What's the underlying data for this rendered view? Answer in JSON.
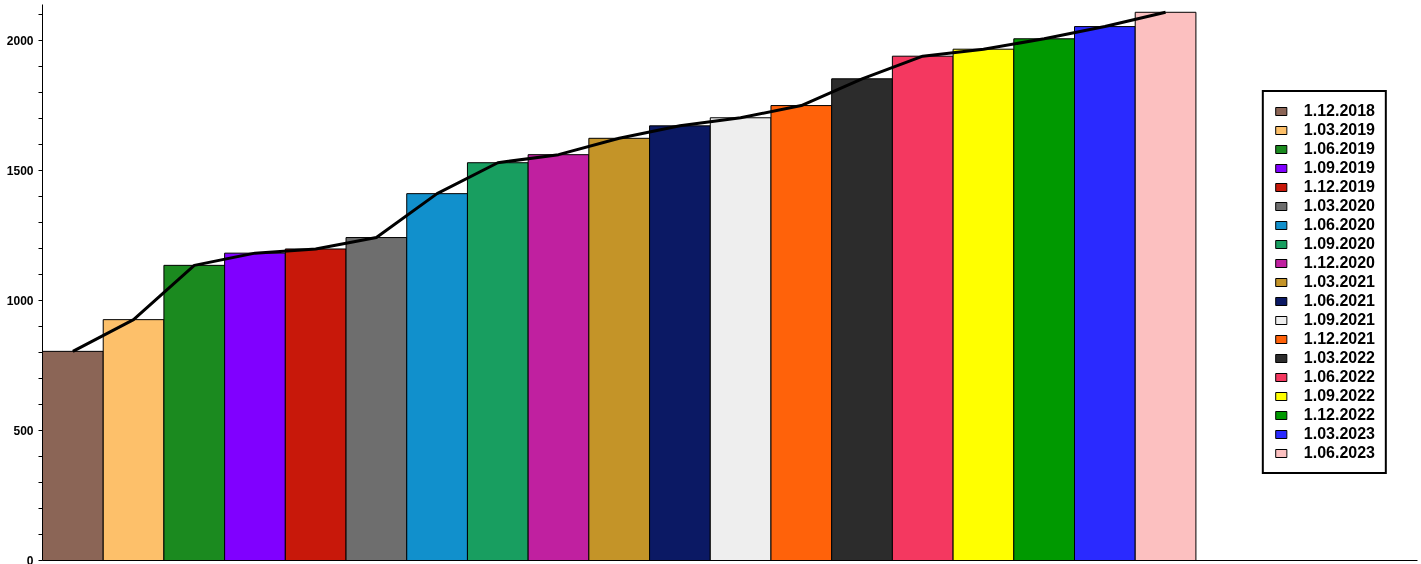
{
  "chart_data": {
    "type": "bar",
    "categories": [
      null,
      null,
      null,
      null,
      null,
      null,
      null,
      null,
      null,
      null,
      null,
      null,
      null,
      null,
      null,
      null,
      null,
      null,
      null
    ],
    "series": [
      {
        "name": "1.12.2018",
        "color": "#8b6556",
        "values": [
          805,
          null,
          null,
          null,
          null,
          null,
          null,
          null,
          null,
          null,
          null,
          null,
          null,
          null,
          null,
          null,
          null,
          null,
          null
        ]
      },
      {
        "name": "1.03.2019",
        "color": "#fdc06a",
        "values": [
          null,
          927,
          null,
          null,
          null,
          null,
          null,
          null,
          null,
          null,
          null,
          null,
          null,
          null,
          null,
          null,
          null,
          null,
          null
        ]
      },
      {
        "name": "1.06.2019",
        "color": "#1b8a1f",
        "values": [
          null,
          null,
          1136,
          null,
          null,
          null,
          null,
          null,
          null,
          null,
          null,
          null,
          null,
          null,
          null,
          null,
          null,
          null,
          null
        ]
      },
      {
        "name": "1.09.2019",
        "color": "#8000ff",
        "values": [
          null,
          null,
          null,
          1183,
          null,
          null,
          null,
          null,
          null,
          null,
          null,
          null,
          null,
          null,
          null,
          null,
          null,
          null,
          null
        ]
      },
      {
        "name": "1.12.2019",
        "color": "#c8180a",
        "values": [
          null,
          null,
          null,
          null,
          1199,
          null,
          null,
          null,
          null,
          null,
          null,
          null,
          null,
          null,
          null,
          null,
          null,
          null,
          null
        ]
      },
      {
        "name": "1.03.2020",
        "color": "#6e6e6e",
        "values": [
          null,
          null,
          null,
          null,
          null,
          1243,
          null,
          null,
          null,
          null,
          null,
          null,
          null,
          null,
          null,
          null,
          null,
          null,
          null
        ]
      },
      {
        "name": "1.06.2020",
        "color": "#1190cc",
        "values": [
          null,
          null,
          null,
          null,
          null,
          null,
          1412,
          null,
          null,
          null,
          null,
          null,
          null,
          null,
          null,
          null,
          null,
          null,
          null
        ]
      },
      {
        "name": "1.09.2020",
        "color": "#189e60",
        "values": [
          null,
          null,
          null,
          null,
          null,
          null,
          null,
          1531,
          null,
          null,
          null,
          null,
          null,
          null,
          null,
          null,
          null,
          null,
          null
        ]
      },
      {
        "name": "1.12.2020",
        "color": "#c020a0",
        "values": [
          null,
          null,
          null,
          null,
          null,
          null,
          null,
          null,
          1562,
          null,
          null,
          null,
          null,
          null,
          null,
          null,
          null,
          null,
          null
        ]
      },
      {
        "name": "1.03.2021",
        "color": "#c49428",
        "values": [
          null,
          null,
          null,
          null,
          null,
          null,
          null,
          null,
          null,
          1625,
          null,
          null,
          null,
          null,
          null,
          null,
          null,
          null,
          null
        ]
      },
      {
        "name": "1.06.2021",
        "color": "#0b1964",
        "values": [
          null,
          null,
          null,
          null,
          null,
          null,
          null,
          null,
          null,
          null,
          1673,
          null,
          null,
          null,
          null,
          null,
          null,
          null,
          null
        ]
      },
      {
        "name": "1.09.2021",
        "color": "#eeeeee",
        "values": [
          null,
          null,
          null,
          null,
          null,
          null,
          null,
          null,
          null,
          null,
          null,
          1704,
          null,
          null,
          null,
          null,
          null,
          null,
          null
        ]
      },
      {
        "name": "1.12.2021",
        "color": "#ff620a",
        "values": [
          null,
          null,
          null,
          null,
          null,
          null,
          null,
          null,
          null,
          null,
          null,
          null,
          1751,
          null,
          null,
          null,
          null,
          null,
          null
        ]
      },
      {
        "name": "1.03.2022",
        "color": "#2c2c2c",
        "values": [
          null,
          null,
          null,
          null,
          null,
          null,
          null,
          null,
          null,
          null,
          null,
          null,
          null,
          1854,
          null,
          null,
          null,
          null,
          null
        ]
      },
      {
        "name": "1.06.2022",
        "color": "#f43860",
        "values": [
          null,
          null,
          null,
          null,
          null,
          null,
          null,
          null,
          null,
          null,
          null,
          null,
          null,
          null,
          1941,
          null,
          null,
          null,
          null
        ]
      },
      {
        "name": "1.09.2022",
        "color": "#ffff00",
        "values": [
          null,
          null,
          null,
          null,
          null,
          null,
          null,
          null,
          null,
          null,
          null,
          null,
          null,
          null,
          null,
          1968,
          null,
          null,
          null
        ]
      },
      {
        "name": "1.12.2022",
        "color": "#009900",
        "values": [
          null,
          null,
          null,
          null,
          null,
          null,
          null,
          null,
          null,
          null,
          null,
          null,
          null,
          null,
          null,
          null,
          2008,
          null,
          null
        ]
      },
      {
        "name": "1.03.2023",
        "color": "#2a2aff",
        "values": [
          null,
          null,
          null,
          null,
          null,
          null,
          null,
          null,
          null,
          null,
          null,
          null,
          null,
          null,
          null,
          null,
          null,
          2055,
          null
        ]
      },
      {
        "name": "1.06.2023",
        "color": "#fcc0c0",
        "values": [
          null,
          null,
          null,
          null,
          null,
          null,
          null,
          null,
          null,
          null,
          null,
          null,
          null,
          null,
          null,
          null,
          null,
          null,
          2110
        ]
      },
      {
        "type": "line",
        "color": "#000000",
        "values": [
          805,
          927,
          1136,
          1183,
          1199,
          1243,
          1412,
          1531,
          1562,
          1625,
          1673,
          1704,
          1751,
          1854,
          1941,
          1968,
          2008,
          2055,
          2110
        ]
      }
    ],
    "ylim": [
      0,
      2140
    ],
    "yticks": [
      0,
      {
        "value": 100,
        "label": null
      },
      {
        "value": 200,
        "label": null
      },
      {
        "value": 300,
        "label": null
      },
      {
        "value": 400,
        "label": null
      },
      500,
      {
        "value": 600,
        "label": null
      },
      {
        "value": 700,
        "label": null
      },
      {
        "value": 800,
        "label": null
      },
      {
        "value": 900,
        "label": null
      },
      1000,
      {
        "value": 1100,
        "label": null
      },
      {
        "value": 1200,
        "label": null
      },
      {
        "value": 1300,
        "label": null
      },
      {
        "value": 1400,
        "label": null
      },
      1500,
      {
        "value": 1600,
        "label": null
      },
      {
        "value": 1700,
        "label": null
      },
      {
        "value": 1800,
        "label": null
      },
      {
        "value": 1900,
        "label": null
      },
      2000,
      {
        "value": 2100,
        "label": null
      }
    ],
    "tick_labels": "y",
    "legend": "right",
    "grid": false
  }
}
